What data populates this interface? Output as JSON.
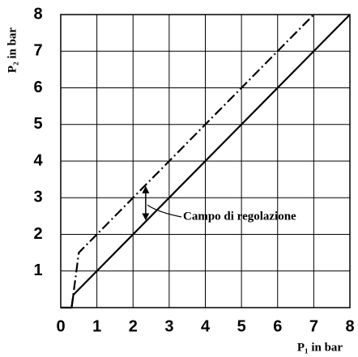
{
  "chart_data": {
    "type": "line",
    "xlabel": "P₁ in bar",
    "ylabel": "P₂ in bar",
    "annotation": "Campo di regolazione",
    "series": [
      {
        "color": "#000000",
        "style": "solid",
        "x": [
          0,
          0.3,
          0.35,
          8
        ],
        "values": [
          0,
          0,
          0.35,
          8
        ]
      },
      {
        "color": "#000000",
        "style": "dashdot",
        "x": [
          0.3,
          0.5,
          7
        ],
        "values": [
          0,
          1.5,
          8
        ]
      }
    ],
    "xlim": [
      0,
      8
    ],
    "ylim": [
      0,
      8
    ],
    "xticks": [
      0,
      1,
      2,
      3,
      4,
      5,
      6,
      7,
      8
    ],
    "yticks": [
      1,
      2,
      3,
      4,
      5,
      6,
      7,
      8
    ],
    "grid": true
  }
}
